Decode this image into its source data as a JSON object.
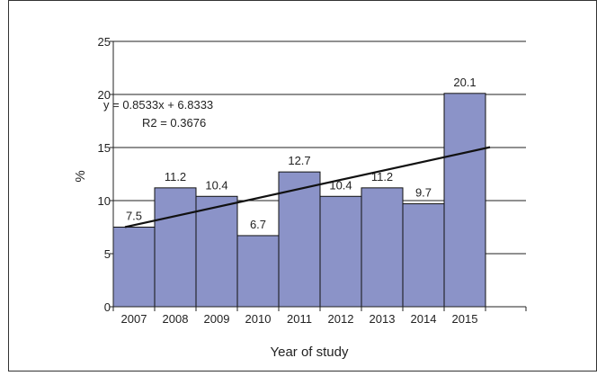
{
  "chart_data": {
    "type": "bar",
    "categories": [
      "2007",
      "2008",
      "2009",
      "2010",
      "2011",
      "2012",
      "2013",
      "2014",
      "2015"
    ],
    "values": [
      7.5,
      11.2,
      10.4,
      6.7,
      12.7,
      10.4,
      11.2,
      9.7,
      20.1
    ],
    "value_labels": [
      "7.5",
      "11.2",
      "10.4",
      "6.7",
      "12.7",
      "10.4",
      "11.2",
      "9.7",
      "20.1"
    ],
    "xlabel": "Year of study",
    "ylabel": "%",
    "ylim": [
      0,
      25
    ],
    "yticks": [
      0,
      5,
      10,
      15,
      20,
      25
    ],
    "ytick_labels": [
      "0",
      "5",
      "10",
      "15",
      "20",
      "25"
    ],
    "grid": "horizontal",
    "bar_color": "#8b93c8",
    "bar_edge_color": "#111111",
    "trendline": {
      "type": "linear",
      "slope": 0.8533,
      "intercept": 6.8333,
      "equation": "y = 0.8533x + 6.8333",
      "r2": "R2 = 0.3676",
      "color": "#111111"
    }
  }
}
